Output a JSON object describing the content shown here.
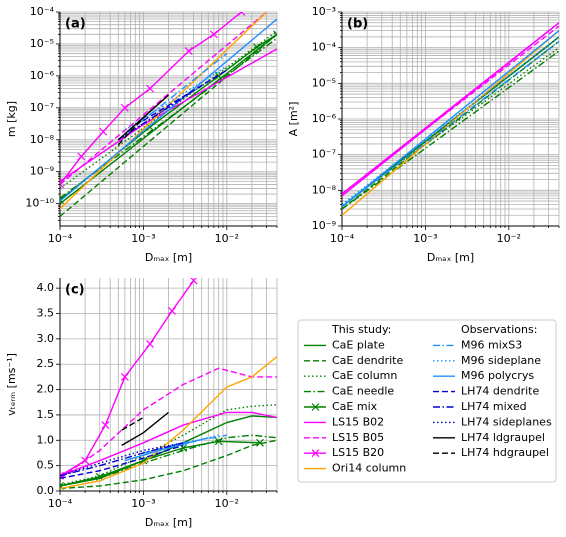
{
  "chart_data": [
    {
      "type": "line",
      "panel_label": "(a)",
      "xlabel": "Dₘₐₓ [m]",
      "ylabel": "m [kg]",
      "xlog": true,
      "ylog": true,
      "grid": true,
      "xlim": [
        0.0001,
        0.04
      ],
      "ylim": [
        2e-11,
        0.0001
      ],
      "xticks": [
        {
          "value": 0.0001,
          "label": "10⁻⁴"
        },
        {
          "value": 0.001,
          "label": "10⁻³"
        },
        {
          "value": 0.01,
          "label": "10⁻²"
        }
      ],
      "yticks": [
        {
          "value": 1e-10,
          "label": "10⁻¹⁰"
        },
        {
          "value": 1e-09,
          "label": "10⁻⁹"
        },
        {
          "value": 1e-08,
          "label": "10⁻⁸"
        },
        {
          "value": 1e-07,
          "label": "10⁻⁷"
        },
        {
          "value": 1e-06,
          "label": "10⁻⁶"
        },
        {
          "value": 1e-05,
          "label": "10⁻⁵"
        },
        {
          "value": 0.0001,
          "label": "10⁻⁴"
        }
      ],
      "xminor": [
        0.0002,
        0.0003,
        0.0004,
        0.0005,
        0.0006,
        0.0007,
        0.0008,
        0.0009,
        0.002,
        0.003,
        0.004,
        0.005,
        0.006,
        0.007,
        0.008,
        0.009,
        0.02,
        0.03,
        0.04
      ],
      "yminor": [
        3e-11,
        4e-11,
        5e-11,
        6e-11,
        7e-11,
        8e-11,
        9e-11,
        2e-10,
        3e-10,
        4e-10,
        5e-10,
        6e-10,
        7e-10,
        8e-10,
        9e-10,
        2e-09,
        3e-09,
        4e-09,
        5e-09,
        6e-09,
        7e-09,
        8e-09,
        9e-09,
        2e-08,
        3e-08,
        4e-08,
        5e-08,
        6e-08,
        7e-08,
        8e-08,
        9e-08,
        2e-07,
        3e-07,
        4e-07,
        5e-07,
        6e-07,
        7e-07,
        8e-07,
        9e-07,
        2e-06,
        3e-06,
        4e-06,
        5e-06,
        6e-06,
        7e-06,
        8e-06,
        9e-06,
        2e-05,
        3e-05,
        4e-05,
        5e-05,
        6e-05,
        7e-05,
        8e-05,
        9e-05
      ],
      "series": [
        {
          "color": "#008000",
          "dash": "solid",
          "x": [
            0.0001,
            0.04
          ],
          "values": [
            1e-10,
            2e-05
          ]
        },
        {
          "color": "#008000",
          "dash": "dashed",
          "x": [
            0.0001,
            0.04
          ],
          "values": [
            4e-11,
            2e-05
          ]
        },
        {
          "color": "#008000",
          "dash": "dotted",
          "x": [
            0.0001,
            0.04
          ],
          "values": [
            3e-10,
            2.5e-05
          ]
        },
        {
          "color": "#008000",
          "dash": "dashdot",
          "x": [
            0.0001,
            0.04
          ],
          "values": [
            1.5e-10,
            1.5e-05
          ]
        },
        {
          "color": "#008000",
          "dash": "solid",
          "marker": "x",
          "x": [
            0.0001,
            0.0012,
            0.008,
            0.023,
            0.04
          ],
          "values": [
            1.3e-10,
            2.5e-08,
            1e-06,
            8e-06,
            2e-05
          ]
        },
        {
          "color": "#ff00ff",
          "dash": "solid",
          "x": [
            0.0001,
            0.001,
            0.04
          ],
          "values": [
            5e-10,
            3e-08,
            7e-06
          ]
        },
        {
          "color": "#ff00ff",
          "dash": "dashed",
          "x": [
            0.0001,
            0.03
          ],
          "values": [
            4e-10,
            0.0001
          ]
        },
        {
          "color": "#ff00ff",
          "dash": "solid",
          "marker": "x",
          "x": [
            0.0001,
            0.00018,
            0.00033,
            0.0006,
            0.0012,
            0.0035,
            0.007,
            0.015
          ],
          "values": [
            4e-10,
            3e-09,
            1.8e-08,
            1e-07,
            4e-07,
            6e-06,
            2e-05,
            0.0001
          ]
        },
        {
          "color": "#ffa500",
          "dash": "solid",
          "x": [
            0.0001,
            0.03
          ],
          "values": [
            7e-11,
            0.0001
          ]
        },
        {
          "color": "#1e90ff",
          "dash": "dashdot",
          "x": [
            0.0005,
            0.01
          ],
          "values": [
            1e-08,
            5e-06
          ]
        },
        {
          "color": "#1e90ff",
          "dash": "dotted",
          "x": [
            0.0006,
            0.01
          ],
          "values": [
            2e-08,
            2e-06
          ]
        },
        {
          "color": "#1e90ff",
          "dash": "solid",
          "x": [
            0.0001,
            0.04
          ],
          "values": [
            1.2e-10,
            6e-05
          ]
        },
        {
          "color": "#0000cd",
          "dash": "dashed",
          "x": [
            0.001,
            0.01
          ],
          "values": [
            4e-08,
            1.5e-06
          ]
        },
        {
          "color": "#0000cd",
          "dash": "dashdot",
          "x": [
            0.0005,
            0.005
          ],
          "values": [
            1e-08,
            5e-07
          ]
        },
        {
          "color": "#0000cd",
          "dash": "dotted",
          "x": [
            0.0005,
            0.003
          ],
          "values": [
            1e-08,
            2e-07
          ]
        },
        {
          "color": "#000000",
          "dash": "solid",
          "x": [
            0.0005,
            0.002
          ],
          "values": [
            1e-08,
            2.5e-07
          ]
        },
        {
          "color": "#000000",
          "dash": "dashed",
          "x": [
            0.0005,
            0.0012
          ],
          "values": [
            7e-09,
            8e-08
          ]
        }
      ]
    },
    {
      "type": "line",
      "panel_label": "(b)",
      "xlabel": "Dₘₐₓ [m]",
      "ylabel": "A [m²]",
      "xlog": true,
      "ylog": true,
      "grid": true,
      "xlim": [
        0.0001,
        0.04
      ],
      "ylim": [
        1e-09,
        0.001
      ],
      "xticks": [
        {
          "value": 0.0001,
          "label": "10⁻⁴"
        },
        {
          "value": 0.001,
          "label": "10⁻³"
        },
        {
          "value": 0.01,
          "label": "10⁻²"
        }
      ],
      "yticks": [
        {
          "value": 1e-09,
          "label": "10⁻⁹"
        },
        {
          "value": 1e-08,
          "label": "10⁻⁸"
        },
        {
          "value": 1e-07,
          "label": "10⁻⁷"
        },
        {
          "value": 1e-06,
          "label": "10⁻⁶"
        },
        {
          "value": 1e-05,
          "label": "10⁻⁵"
        },
        {
          "value": 0.0001,
          "label": "10⁻⁴"
        },
        {
          "value": 0.001,
          "label": "10⁻³"
        }
      ],
      "xminor": [
        0.0002,
        0.0003,
        0.0004,
        0.0005,
        0.0006,
        0.0007,
        0.0008,
        0.0009,
        0.002,
        0.003,
        0.004,
        0.005,
        0.006,
        0.007,
        0.008,
        0.009,
        0.02,
        0.03,
        0.04
      ],
      "yminor": [
        2e-09,
        3e-09,
        4e-09,
        5e-09,
        6e-09,
        7e-09,
        8e-09,
        9e-09,
        2e-08,
        3e-08,
        4e-08,
        5e-08,
        6e-08,
        7e-08,
        8e-08,
        9e-08,
        2e-07,
        3e-07,
        4e-07,
        5e-07,
        6e-07,
        7e-07,
        8e-07,
        9e-07,
        2e-06,
        3e-06,
        4e-06,
        5e-06,
        6e-06,
        7e-06,
        8e-06,
        9e-06,
        2e-05,
        3e-05,
        4e-05,
        5e-05,
        6e-05,
        7e-05,
        8e-05,
        9e-05,
        0.0002,
        0.0003,
        0.0004,
        0.0005,
        0.0006,
        0.0007,
        0.0008,
        0.0009
      ],
      "series": [
        {
          "color": "#008000",
          "dash": "solid",
          "x": [
            0.0001,
            0.04
          ],
          "values": [
            3.5e-09,
            0.0002
          ]
        },
        {
          "color": "#008000",
          "dash": "dashed",
          "x": [
            0.0001,
            0.04
          ],
          "values": [
            3e-09,
            0.00015
          ]
        },
        {
          "color": "#008000",
          "dash": "dotted",
          "x": [
            0.0001,
            0.04
          ],
          "values": [
            4e-09,
            0.0001
          ]
        },
        {
          "color": "#008000",
          "dash": "dashdot",
          "x": [
            0.0001,
            0.04
          ],
          "values": [
            3e-09,
            8e-05
          ]
        },
        {
          "color": "#008000",
          "dash": "solid",
          "x": [
            0.0001,
            0.04
          ],
          "values": [
            3.5e-09,
            0.0002
          ]
        },
        {
          "color": "#ff00ff",
          "dash": "solid",
          "x": [
            0.0001,
            0.04
          ],
          "values": [
            7e-09,
            0.0005
          ]
        },
        {
          "color": "#ff00ff",
          "dash": "dashed",
          "x": [
            0.0001,
            0.04
          ],
          "values": [
            8e-09,
            0.0004
          ]
        },
        {
          "color": "#ff00ff",
          "dash": "solid",
          "x": [
            0.0001,
            0.04
          ],
          "values": [
            8e-09,
            0.0005
          ]
        },
        {
          "color": "#ffa500",
          "dash": "solid",
          "x": [
            0.0001,
            0.04
          ],
          "values": [
            2e-09,
            0.0003
          ]
        },
        {
          "color": "#1e90ff",
          "dash": "dashdot",
          "x": [
            0.0001,
            0.04
          ],
          "values": [
            3.5e-09,
            0.00015
          ]
        },
        {
          "color": "#1e90ff",
          "dash": "dotted",
          "x": [
            0.0001,
            0.04
          ],
          "values": [
            4e-09,
            0.0002
          ]
        },
        {
          "color": "#1e90ff",
          "dash": "solid",
          "x": [
            0.0001,
            0.04
          ],
          "values": [
            3.5e-09,
            0.0003
          ]
        }
      ]
    },
    {
      "type": "line",
      "panel_label": "(c)",
      "xlabel": "Dₘₐₓ [m]",
      "ylabel": "vₜₑᵣₘ [ms⁻¹]",
      "xlog": true,
      "ylog": false,
      "grid": true,
      "xlim": [
        0.0001,
        0.04
      ],
      "ylim": [
        0,
        4.2
      ],
      "xticks": [
        {
          "value": 0.0001,
          "label": "10⁻⁴"
        },
        {
          "value": 0.001,
          "label": "10⁻³"
        },
        {
          "value": 0.01,
          "label": "10⁻²"
        }
      ],
      "yticks": [
        {
          "value": 0,
          "label": "0.0"
        },
        0.5,
        {
          "value": 1,
          "label": "1.0"
        },
        1.5,
        {
          "value": 2,
          "label": "2.0"
        },
        2.5,
        {
          "value": 3,
          "label": "3.0"
        },
        3.5,
        {
          "value": 4,
          "label": "4.0"
        }
      ],
      "xminor": [
        0.0002,
        0.0003,
        0.0004,
        0.0005,
        0.0006,
        0.0007,
        0.0008,
        0.0009,
        0.002,
        0.003,
        0.004,
        0.005,
        0.006,
        0.007,
        0.008,
        0.009,
        0.02,
        0.03,
        0.04
      ],
      "legend": {
        "ncol": 2,
        "headers": [
          "This study:",
          "Observations:"
        ]
      },
      "series": [
        {
          "name": "CaE plate",
          "color": "#008000",
          "dash": "solid",
          "x": [
            0.0001,
            0.0003,
            0.001,
            0.003,
            0.01,
            0.02,
            0.04
          ],
          "values": [
            0.1,
            0.25,
            0.6,
            0.95,
            1.35,
            1.48,
            1.45
          ]
        },
        {
          "name": "CaE dendrite",
          "color": "#008000",
          "dash": "dashed",
          "x": [
            0.0001,
            0.0003,
            0.001,
            0.003,
            0.01,
            0.02,
            0.04
          ],
          "values": [
            0.05,
            0.1,
            0.22,
            0.4,
            0.7,
            0.9,
            1.0
          ]
        },
        {
          "name": "CaE column",
          "color": "#008000",
          "dash": "dotted",
          "x": [
            0.0001,
            0.0003,
            0.001,
            0.003,
            0.01,
            0.02,
            0.04
          ],
          "values": [
            0.12,
            0.3,
            0.7,
            1.1,
            1.6,
            1.67,
            1.7
          ]
        },
        {
          "name": "CaE needle",
          "color": "#008000",
          "dash": "dashdot",
          "x": [
            0.0001,
            0.0003,
            0.001,
            0.003,
            0.01,
            0.02,
            0.04
          ],
          "values": [
            0.1,
            0.25,
            0.55,
            0.8,
            1.05,
            1.1,
            1.05
          ]
        },
        {
          "name": "CaE mix",
          "color": "#008000",
          "dash": "solid",
          "marker": "x",
          "x": [
            0.0001,
            0.0003,
            0.001,
            0.003,
            0.008,
            0.025
          ],
          "values": [
            0.1,
            0.28,
            0.6,
            0.85,
            0.98,
            0.95
          ]
        },
        {
          "name": "LS15 B02",
          "color": "#ff00ff",
          "dash": "solid",
          "x": [
            0.0001,
            0.0003,
            0.001,
            0.003,
            0.01,
            0.02,
            0.04
          ],
          "values": [
            0.3,
            0.6,
            0.95,
            1.3,
            1.55,
            1.55,
            1.45
          ]
        },
        {
          "name": "LS15 B05",
          "color": "#ff00ff",
          "dash": "dashed",
          "x": [
            0.0001,
            0.0003,
            0.001,
            0.003,
            0.008,
            0.02,
            0.04
          ],
          "values": [
            0.25,
            0.8,
            1.6,
            2.1,
            2.42,
            2.25,
            2.25
          ]
        },
        {
          "name": "LS15 B20",
          "color": "#ff00ff",
          "dash": "solid",
          "marker": "x",
          "x": [
            0.0001,
            0.0002,
            0.00035,
            0.0006,
            0.0012,
            0.0022,
            0.004
          ],
          "values": [
            0.3,
            0.6,
            1.3,
            2.25,
            2.9,
            3.55,
            4.15
          ]
        },
        {
          "name": "Ori14 column",
          "color": "#ffa500",
          "dash": "solid",
          "x": [
            0.0001,
            0.0003,
            0.001,
            0.003,
            0.01,
            0.02,
            0.04
          ],
          "values": [
            0.05,
            0.2,
            0.55,
            1.2,
            2.05,
            2.25,
            2.65
          ]
        },
        {
          "name": "M96 mixS3",
          "color": "#1e90ff",
          "dash": "dashdot",
          "x": [
            0.001,
            0.003,
            0.01
          ],
          "values": [
            0.75,
            0.95,
            1.1
          ]
        },
        {
          "name": "M96 sideplane",
          "color": "#1e90ff",
          "dash": "dotted",
          "x": [
            0.0006,
            0.002,
            0.008
          ],
          "values": [
            0.6,
            0.85,
            1.1
          ]
        },
        {
          "name": "M96 polycrys",
          "color": "#1e90ff",
          "dash": "solid",
          "x": [
            0.0006,
            0.002,
            0.006
          ],
          "values": [
            0.6,
            0.85,
            1.05
          ]
        },
        {
          "name": "LH74 dendrite",
          "color": "#0000cd",
          "dash": "dashed",
          "x": [
            0.0001,
            0.0003,
            0.001,
            0.003
          ],
          "values": [
            0.25,
            0.4,
            0.65,
            0.9
          ]
        },
        {
          "name": "LH74 mixed",
          "color": "#0000cd",
          "dash": "dashdot",
          "x": [
            0.0001,
            0.0003,
            0.001,
            0.003
          ],
          "values": [
            0.3,
            0.5,
            0.75,
            0.95
          ]
        },
        {
          "name": "LH74 sideplanes",
          "color": "#0000cd",
          "dash": "dotted",
          "x": [
            0.0001,
            0.0003,
            0.001,
            0.003
          ],
          "values": [
            0.3,
            0.55,
            0.8,
            0.95
          ]
        },
        {
          "name": "LH74 ldgraupel",
          "color": "#000000",
          "dash": "solid",
          "x": [
            0.00055,
            0.001,
            0.002
          ],
          "values": [
            0.9,
            1.15,
            1.55
          ]
        },
        {
          "name": "LH74 hdgraupel",
          "color": "#000000",
          "dash": "dashed",
          "x": [
            0.00055,
            0.001
          ],
          "values": [
            1.2,
            1.45
          ]
        }
      ]
    }
  ]
}
